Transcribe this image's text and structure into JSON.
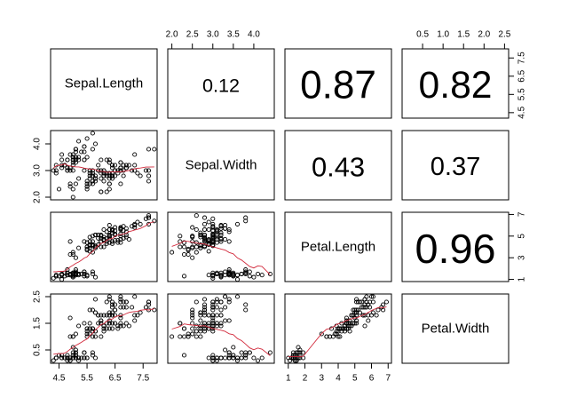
{
  "chart_data": {
    "type": "scatter",
    "variables": [
      "Sepal.Length",
      "Sepal.Width",
      "Petal.Length",
      "Petal.Width"
    ],
    "correlations": [
      {
        "row": 0,
        "col": 1,
        "label": "0.12"
      },
      {
        "row": 0,
        "col": 2,
        "label": "0.87"
      },
      {
        "row": 0,
        "col": 3,
        "label": "0.82"
      },
      {
        "row": 1,
        "col": 2,
        "label": "0.43"
      },
      {
        "row": 1,
        "col": 3,
        "label": "0.37"
      },
      {
        "row": 2,
        "col": 3,
        "label": "0.96"
      }
    ],
    "axes": [
      {
        "var": "Sepal.Length",
        "range": [
          4.2,
          8.0
        ],
        "ticks": [
          {
            "v": 4.5,
            "label": "4.5"
          },
          {
            "v": 5.5,
            "label": "5.5"
          },
          {
            "v": 6.5,
            "label": "6.5"
          },
          {
            "v": 7.5,
            "label": "7.5"
          }
        ]
      },
      {
        "var": "Sepal.Width",
        "range": [
          1.9,
          4.5
        ],
        "ticks": [
          {
            "v": 2.0,
            "label": "2.0"
          },
          {
            "v": 2.5,
            "label": "2.5"
          },
          {
            "v": 3.0,
            "label": "3.0"
          },
          {
            "v": 3.5,
            "label": "3.5"
          },
          {
            "v": 4.0,
            "label": "4.0"
          }
        ]
      },
      {
        "var": "Petal.Length",
        "range": [
          0.8,
          7.2
        ],
        "ticks": [
          {
            "v": 1,
            "label": "1"
          },
          {
            "v": 2,
            "label": "2"
          },
          {
            "v": 3,
            "label": "3"
          },
          {
            "v": 4,
            "label": "4"
          },
          {
            "v": 5,
            "label": "5"
          },
          {
            "v": 6,
            "label": "6"
          },
          {
            "v": 7,
            "label": "7"
          }
        ]
      },
      {
        "var": "Petal.Width",
        "range": [
          0.0,
          2.6
        ],
        "ticks": [
          {
            "v": 0.5,
            "label": "0.5"
          },
          {
            "v": 1.0,
            "label": "1.0"
          },
          {
            "v": 1.5,
            "label": "1.5"
          },
          {
            "v": 2.0,
            "label": "2.0"
          },
          {
            "v": 2.5,
            "label": "2.5"
          }
        ]
      }
    ],
    "left_axis_ticks": [
      {
        "row": 1,
        "ticks": [
          {
            "v": 2.0,
            "label": "2.0"
          },
          {
            "v": 3.0,
            "label": "3.0"
          },
          {
            "v": 4.0,
            "label": "4.0"
          }
        ]
      },
      {
        "row": 3,
        "ticks": [
          {
            "v": 0.5,
            "label": "0.5"
          },
          {
            "v": 1.5,
            "label": "1.5"
          },
          {
            "v": 2.5,
            "label": "2.5"
          }
        ]
      }
    ],
    "right_axis_ticks": [
      {
        "row": 0,
        "ticks": [
          {
            "v": 4.5,
            "label": "4.5"
          },
          {
            "v": 5.5,
            "label": "5.5"
          },
          {
            "v": 6.5,
            "label": "6.5"
          },
          {
            "v": 7.5,
            "label": "7.5"
          }
        ]
      },
      {
        "row": 2,
        "ticks": [
          {
            "v": 1,
            "label": "1"
          },
          {
            "v": 3,
            "label": "3"
          },
          {
            "v": 5,
            "label": "5"
          },
          {
            "v": 7,
            "label": "7"
          }
        ]
      }
    ],
    "top_axis_ticks": [
      {
        "col": 1,
        "ticks": [
          {
            "v": 2.0,
            "label": "2.0"
          },
          {
            "v": 2.5,
            "label": "2.5"
          },
          {
            "v": 3.0,
            "label": "3.0"
          },
          {
            "v": 3.5,
            "label": "3.5"
          },
          {
            "v": 4.0,
            "label": "4.0"
          }
        ]
      },
      {
        "col": 3,
        "ticks": [
          {
            "v": 0.5,
            "label": "0.5"
          },
          {
            "v": 1.0,
            "label": "1.0"
          },
          {
            "v": 1.5,
            "label": "1.5"
          },
          {
            "v": 2.0,
            "label": "2.0"
          },
          {
            "v": 2.5,
            "label": "2.5"
          }
        ]
      }
    ],
    "bottom_axis_ticks": [
      {
        "col": 0,
        "ticks": [
          {
            "v": 4.5,
            "label": "4.5"
          },
          {
            "v": 5.5,
            "label": "5.5"
          },
          {
            "v": 6.5,
            "label": "6.5"
          },
          {
            "v": 7.5,
            "label": "7.5"
          }
        ]
      },
      {
        "col": 2,
        "ticks": [
          {
            "v": 1,
            "label": "1"
          },
          {
            "v": 2,
            "label": "2"
          },
          {
            "v": 3,
            "label": "3"
          },
          {
            "v": 4,
            "label": "4"
          },
          {
            "v": 5,
            "label": "5"
          },
          {
            "v": 6,
            "label": "6"
          },
          {
            "v": 7,
            "label": "7"
          }
        ]
      }
    ],
    "point_color": "#000000",
    "smoother_color": "#d22a3c",
    "observations": [
      [
        5.1,
        3.5,
        1.4,
        0.2
      ],
      [
        4.9,
        3.0,
        1.4,
        0.2
      ],
      [
        4.7,
        3.2,
        1.3,
        0.2
      ],
      [
        4.6,
        3.1,
        1.5,
        0.2
      ],
      [
        5.0,
        3.6,
        1.4,
        0.2
      ],
      [
        5.4,
        3.9,
        1.7,
        0.4
      ],
      [
        4.6,
        3.4,
        1.4,
        0.3
      ],
      [
        5.0,
        3.4,
        1.5,
        0.2
      ],
      [
        4.4,
        2.9,
        1.4,
        0.2
      ],
      [
        4.9,
        3.1,
        1.5,
        0.1
      ],
      [
        5.4,
        3.7,
        1.5,
        0.2
      ],
      [
        4.8,
        3.4,
        1.6,
        0.2
      ],
      [
        4.8,
        3.0,
        1.4,
        0.1
      ],
      [
        4.3,
        3.0,
        1.1,
        0.1
      ],
      [
        5.8,
        4.0,
        1.2,
        0.2
      ],
      [
        5.7,
        4.4,
        1.5,
        0.4
      ],
      [
        5.4,
        3.9,
        1.3,
        0.4
      ],
      [
        5.1,
        3.5,
        1.4,
        0.3
      ],
      [
        5.7,
        3.8,
        1.7,
        0.3
      ],
      [
        5.1,
        3.8,
        1.5,
        0.3
      ],
      [
        5.4,
        3.4,
        1.7,
        0.2
      ],
      [
        5.1,
        3.7,
        1.5,
        0.4
      ],
      [
        4.6,
        3.6,
        1.0,
        0.2
      ],
      [
        5.1,
        3.3,
        1.7,
        0.5
      ],
      [
        4.8,
        3.4,
        1.9,
        0.2
      ],
      [
        5.0,
        3.0,
        1.6,
        0.2
      ],
      [
        5.0,
        3.4,
        1.6,
        0.4
      ],
      [
        5.2,
        3.5,
        1.5,
        0.2
      ],
      [
        5.2,
        3.4,
        1.4,
        0.2
      ],
      [
        4.7,
        3.2,
        1.6,
        0.2
      ],
      [
        4.8,
        3.1,
        1.6,
        0.2
      ],
      [
        5.4,
        3.4,
        1.5,
        0.4
      ],
      [
        5.2,
        4.1,
        1.5,
        0.1
      ],
      [
        5.5,
        4.2,
        1.4,
        0.2
      ],
      [
        4.9,
        3.1,
        1.5,
        0.2
      ],
      [
        5.0,
        3.2,
        1.2,
        0.2
      ],
      [
        5.5,
        3.5,
        1.3,
        0.2
      ],
      [
        4.9,
        3.6,
        1.4,
        0.1
      ],
      [
        4.4,
        3.0,
        1.3,
        0.2
      ],
      [
        5.1,
        3.4,
        1.5,
        0.2
      ],
      [
        5.0,
        3.5,
        1.3,
        0.3
      ],
      [
        4.5,
        2.3,
        1.3,
        0.3
      ],
      [
        4.4,
        3.2,
        1.3,
        0.2
      ],
      [
        5.0,
        3.5,
        1.6,
        0.6
      ],
      [
        5.1,
        3.8,
        1.9,
        0.4
      ],
      [
        4.8,
        3.0,
        1.4,
        0.3
      ],
      [
        5.1,
        3.8,
        1.6,
        0.2
      ],
      [
        4.6,
        3.2,
        1.4,
        0.2
      ],
      [
        5.3,
        3.7,
        1.5,
        0.2
      ],
      [
        5.0,
        3.3,
        1.4,
        0.2
      ],
      [
        7.0,
        3.2,
        4.7,
        1.4
      ],
      [
        6.4,
        3.2,
        4.5,
        1.5
      ],
      [
        6.9,
        3.1,
        4.9,
        1.5
      ],
      [
        5.5,
        2.3,
        4.0,
        1.3
      ],
      [
        6.5,
        2.8,
        4.6,
        1.5
      ],
      [
        5.7,
        2.8,
        4.5,
        1.3
      ],
      [
        6.3,
        3.3,
        4.7,
        1.6
      ],
      [
        4.9,
        2.4,
        3.3,
        1.0
      ],
      [
        6.6,
        2.9,
        4.6,
        1.3
      ],
      [
        5.2,
        2.7,
        3.9,
        1.4
      ],
      [
        5.0,
        2.0,
        3.5,
        1.0
      ],
      [
        5.9,
        3.0,
        4.2,
        1.5
      ],
      [
        6.0,
        2.2,
        4.0,
        1.0
      ],
      [
        6.1,
        2.9,
        4.7,
        1.4
      ],
      [
        5.6,
        2.9,
        3.6,
        1.3
      ],
      [
        6.7,
        3.1,
        4.4,
        1.4
      ],
      [
        5.6,
        3.0,
        4.5,
        1.5
      ],
      [
        5.8,
        2.7,
        4.1,
        1.0
      ],
      [
        6.2,
        2.2,
        4.5,
        1.5
      ],
      [
        5.6,
        2.5,
        3.9,
        1.1
      ],
      [
        5.9,
        3.2,
        4.8,
        1.8
      ],
      [
        6.1,
        2.8,
        4.0,
        1.3
      ],
      [
        6.3,
        2.5,
        4.9,
        1.5
      ],
      [
        6.1,
        2.8,
        4.7,
        1.2
      ],
      [
        6.4,
        2.9,
        4.3,
        1.3
      ],
      [
        6.6,
        3.0,
        4.4,
        1.4
      ],
      [
        6.8,
        2.8,
        4.8,
        1.4
      ],
      [
        6.7,
        3.0,
        5.0,
        1.7
      ],
      [
        6.0,
        2.9,
        4.5,
        1.5
      ],
      [
        5.7,
        2.6,
        3.5,
        1.0
      ],
      [
        5.5,
        2.4,
        3.8,
        1.1
      ],
      [
        5.5,
        2.4,
        3.7,
        1.0
      ],
      [
        5.8,
        2.7,
        3.9,
        1.2
      ],
      [
        6.0,
        2.7,
        5.1,
        1.6
      ],
      [
        5.4,
        3.0,
        4.5,
        1.5
      ],
      [
        6.0,
        3.4,
        4.5,
        1.6
      ],
      [
        6.7,
        3.1,
        4.7,
        1.5
      ],
      [
        6.3,
        2.3,
        4.4,
        1.3
      ],
      [
        5.6,
        3.0,
        4.1,
        1.3
      ],
      [
        5.5,
        2.5,
        4.0,
        1.3
      ],
      [
        5.5,
        2.6,
        4.4,
        1.2
      ],
      [
        6.1,
        3.0,
        4.6,
        1.4
      ],
      [
        5.8,
        2.6,
        4.0,
        1.2
      ],
      [
        5.0,
        2.3,
        3.3,
        1.0
      ],
      [
        5.6,
        2.7,
        4.2,
        1.3
      ],
      [
        5.7,
        3.0,
        4.2,
        1.2
      ],
      [
        5.7,
        2.9,
        4.2,
        1.3
      ],
      [
        6.2,
        2.9,
        4.3,
        1.3
      ],
      [
        5.1,
        2.5,
        3.0,
        1.1
      ],
      [
        5.7,
        2.8,
        4.1,
        1.3
      ],
      [
        6.3,
        3.3,
        6.0,
        2.5
      ],
      [
        5.8,
        2.7,
        5.1,
        1.9
      ],
      [
        7.1,
        3.0,
        5.9,
        2.1
      ],
      [
        6.3,
        2.9,
        5.6,
        1.8
      ],
      [
        6.5,
        3.0,
        5.8,
        2.2
      ],
      [
        7.6,
        3.0,
        6.6,
        2.1
      ],
      [
        4.9,
        2.5,
        4.5,
        1.7
      ],
      [
        7.3,
        2.9,
        6.3,
        1.8
      ],
      [
        6.7,
        2.5,
        5.8,
        1.8
      ],
      [
        7.2,
        3.6,
        6.1,
        2.5
      ],
      [
        6.5,
        3.2,
        5.1,
        2.0
      ],
      [
        6.4,
        2.7,
        5.3,
        1.9
      ],
      [
        6.8,
        3.0,
        5.5,
        2.1
      ],
      [
        5.7,
        2.5,
        5.0,
        2.0
      ],
      [
        5.8,
        2.8,
        5.1,
        2.4
      ],
      [
        6.4,
        3.2,
        5.3,
        2.3
      ],
      [
        6.5,
        3.0,
        5.5,
        1.8
      ],
      [
        7.7,
        3.8,
        6.7,
        2.2
      ],
      [
        7.7,
        2.6,
        6.9,
        2.3
      ],
      [
        6.0,
        2.2,
        5.0,
        1.5
      ],
      [
        6.9,
        3.2,
        5.7,
        2.3
      ],
      [
        5.6,
        2.8,
        4.9,
        2.0
      ],
      [
        7.7,
        2.8,
        6.7,
        2.0
      ],
      [
        6.3,
        2.7,
        4.9,
        1.8
      ],
      [
        6.7,
        3.3,
        5.7,
        2.1
      ],
      [
        7.2,
        3.2,
        6.0,
        1.8
      ],
      [
        6.2,
        2.8,
        4.8,
        1.8
      ],
      [
        6.1,
        3.0,
        4.9,
        1.8
      ],
      [
        6.4,
        2.8,
        5.6,
        2.1
      ],
      [
        7.2,
        3.0,
        5.8,
        1.6
      ],
      [
        7.4,
        2.8,
        6.1,
        1.9
      ],
      [
        7.9,
        3.8,
        6.4,
        2.0
      ],
      [
        6.4,
        2.8,
        5.6,
        2.2
      ],
      [
        6.3,
        2.8,
        5.1,
        1.5
      ],
      [
        6.1,
        2.6,
        5.6,
        1.4
      ],
      [
        7.7,
        3.0,
        6.1,
        2.3
      ],
      [
        6.3,
        3.4,
        5.6,
        2.4
      ],
      [
        6.4,
        3.1,
        5.5,
        1.8
      ],
      [
        6.0,
        3.0,
        4.8,
        1.8
      ],
      [
        6.9,
        3.1,
        5.4,
        2.1
      ],
      [
        6.7,
        3.1,
        5.6,
        2.4
      ],
      [
        6.9,
        3.1,
        5.1,
        2.3
      ],
      [
        5.8,
        2.7,
        5.1,
        1.9
      ],
      [
        6.8,
        3.2,
        5.9,
        2.3
      ],
      [
        6.7,
        3.3,
        5.7,
        2.5
      ],
      [
        6.7,
        3.0,
        5.2,
        2.3
      ],
      [
        6.3,
        2.5,
        5.0,
        1.9
      ],
      [
        6.5,
        3.0,
        5.2,
        2.0
      ],
      [
        6.2,
        3.4,
        5.4,
        2.3
      ],
      [
        5.9,
        3.0,
        5.1,
        1.8
      ]
    ]
  }
}
